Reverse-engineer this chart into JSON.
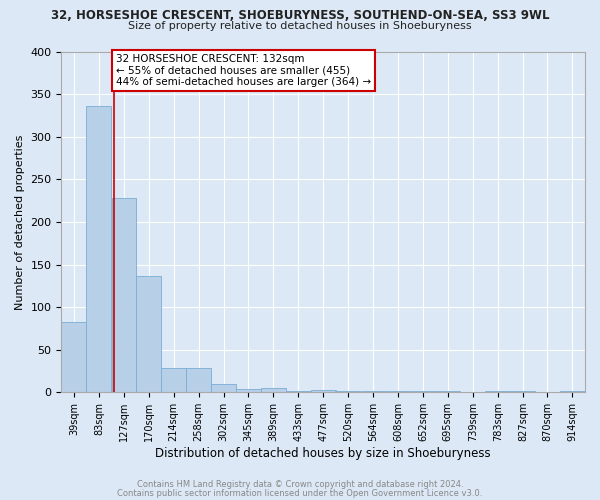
{
  "title_line1": "32, HORSESHOE CRESCENT, SHOEBURYNESS, SOUTHEND-ON-SEA, SS3 9WL",
  "title_line2": "Size of property relative to detached houses in Shoeburyness",
  "xlabel": "Distribution of detached houses by size in Shoeburyness",
  "ylabel": "Number of detached properties",
  "footer_line1": "Contains HM Land Registry data © Crown copyright and database right 2024.",
  "footer_line2": "Contains public sector information licensed under the Open Government Licence v3.0.",
  "bar_color": "#b8cfe8",
  "bar_edge_color": "#7aadd4",
  "background_color": "#dce8f5",
  "grid_color": "#ffffff",
  "annotation_line1": "32 HORSESHOE CRESCENT: 132sqm",
  "annotation_line2": "← 55% of detached houses are smaller (455)",
  "annotation_line3": "44% of semi-detached houses are larger (364) →",
  "annotation_box_color": "#ffffff",
  "annotation_border_color": "#cc0000",
  "vline_color": "#cc0000",
  "vline_x": 132,
  "categories": [
    "39sqm",
    "83sqm",
    "127sqm",
    "170sqm",
    "214sqm",
    "258sqm",
    "302sqm",
    "345sqm",
    "389sqm",
    "433sqm",
    "477sqm",
    "520sqm",
    "564sqm",
    "608sqm",
    "652sqm",
    "695sqm",
    "739sqm",
    "783sqm",
    "827sqm",
    "870sqm",
    "914sqm"
  ],
  "bin_edges": [
    39,
    83,
    127,
    170,
    214,
    258,
    302,
    345,
    389,
    433,
    477,
    520,
    564,
    608,
    652,
    695,
    739,
    783,
    827,
    870,
    914
  ],
  "bin_width": 44,
  "values": [
    83,
    336,
    228,
    136,
    29,
    29,
    10,
    4,
    5,
    2,
    3,
    2,
    1,
    2,
    1,
    2,
    0,
    1,
    2,
    0,
    1
  ],
  "ylim": [
    0,
    400
  ],
  "yticks": [
    0,
    50,
    100,
    150,
    200,
    250,
    300,
    350,
    400
  ],
  "title1_fontsize": 8.5,
  "title2_fontsize": 8.0,
  "ylabel_fontsize": 8.0,
  "xlabel_fontsize": 8.5,
  "ytick_fontsize": 8.0,
  "xtick_fontsize": 7.0,
  "footer_fontsize": 6.0,
  "footer_color": "#888888"
}
